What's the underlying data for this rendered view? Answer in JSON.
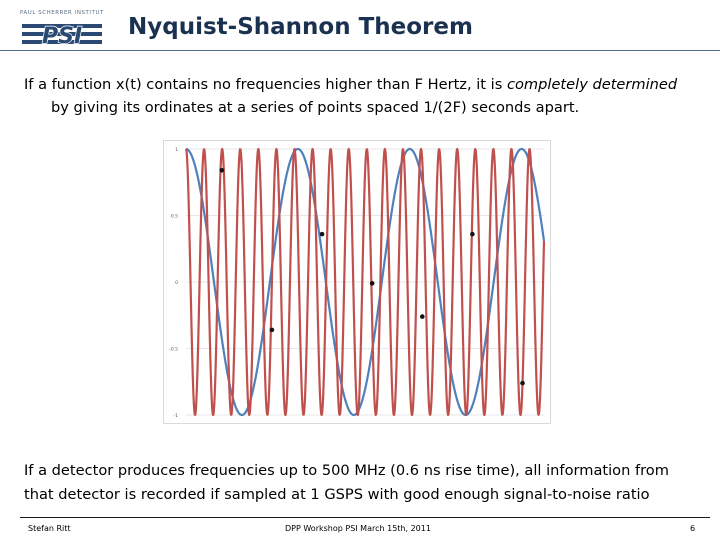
{
  "logo": {
    "top_text": "PAUL SCHERRER INSTITUT",
    "mark_text": "PSI"
  },
  "slide": {
    "title": "Nyquist-Shannon Theorem",
    "para1": {
      "before_em": "If a function x(t) contains no frequencies higher than F Hertz, it is ",
      "em": "completely determined",
      "line2": "by giving its ordinates at a series of points spaced 1/(2F) seconds apart."
    },
    "para2": {
      "line1": "If a detector produces frequencies up to 500 MHz (0.6 ns rise time), all information from",
      "line2": "that detector is recorded if sampled at 1 GSPS with good enough signal-to-noise ratio"
    }
  },
  "footer": {
    "left": "Stefan Ritt",
    "center": "DPP Workshop PSI   March 15th, 2011",
    "right": "6"
  },
  "colors": {
    "title": "#1a3150",
    "logo_blue": "#2b4a73",
    "red_series": "#c0504d",
    "blue_series": "#4f81bd",
    "sample_dot": "#111111",
    "grid": "#d0d0d0"
  },
  "chart_data": {
    "type": "line",
    "title": "",
    "xlabel": "",
    "ylabel": "",
    "ylim": [
      -1,
      1
    ],
    "xlim": [
      0,
      1
    ],
    "y_ticks": [
      "1",
      "0.5",
      "0",
      "-0.5",
      "-1"
    ],
    "grid": true,
    "series": [
      {
        "color": "#4f81bd",
        "kind": "sinusoid",
        "cycles": 3.2,
        "amplitude": 1,
        "phase_deg": 90
      },
      {
        "color": "#c0504d",
        "kind": "sinusoid",
        "cycles": 19.8,
        "amplitude": 1,
        "phase_deg": 90
      }
    ],
    "samples": {
      "x": [
        0.1,
        0.24,
        0.38,
        0.52,
        0.66,
        0.8,
        0.94
      ],
      "y": [
        0.84,
        -0.36,
        0.36,
        -0.01,
        -0.26,
        0.36,
        -0.76
      ]
    }
  }
}
